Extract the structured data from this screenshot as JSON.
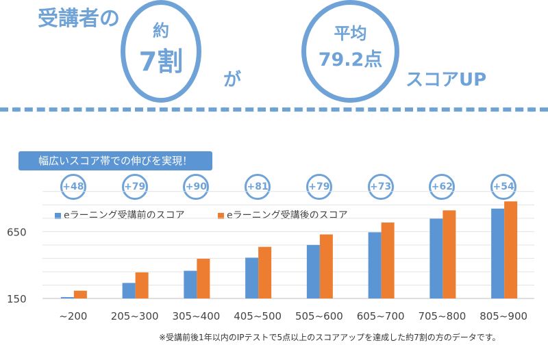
{
  "header": {
    "prefix": "受講者の",
    "circle1_line1": "約",
    "circle1_line2": "7割",
    "connector": "が",
    "circle2_line1": "平均",
    "circle2_line2": "79.2点",
    "suffix": "スコアUP"
  },
  "banner": "幅広いスコア帯での伸びを実現！",
  "colors": {
    "accent": "#6fa3d8",
    "before": "#5b95d4",
    "after": "#ed7d31"
  },
  "chart_data": {
    "type": "bar",
    "categories": [
      "~200",
      "205~300",
      "305~400",
      "405~500",
      "505~600",
      "605~700",
      "705~800",
      "805~900"
    ],
    "increases": [
      "+48",
      "+79",
      "+90",
      "+81",
      "+79",
      "+73",
      "+62",
      "+54"
    ],
    "series": [
      {
        "name": "eラーニング受講前のスコア",
        "values": [
          160,
          266,
          357,
          455,
          550,
          645,
          747,
          822
        ]
      },
      {
        "name": "eラーニング受講後のスコア",
        "values": [
          208,
          345,
          447,
          536,
          629,
          718,
          809,
          876
        ]
      }
    ],
    "yticks": [
      "150",
      "650"
    ],
    "ylim": [
      150,
      1000
    ],
    "legend_position": "top-left"
  },
  "footnote": "※受講前後1年以内のIPテストで5点以上のスコアアップを達成した約7割の方のデータです。"
}
